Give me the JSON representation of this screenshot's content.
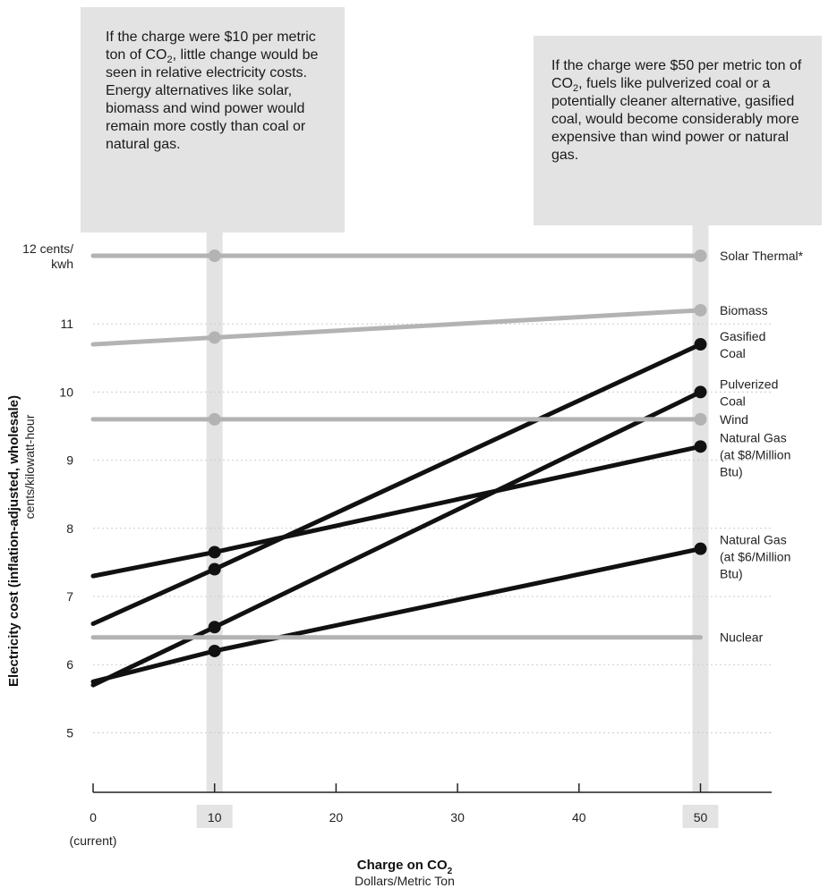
{
  "chart_data": {
    "type": "line",
    "x_ticks": [
      0,
      10,
      20,
      30,
      40,
      50
    ],
    "x_tick_labels": [
      "0",
      "10",
      "20",
      "30",
      "40",
      "50"
    ],
    "x_origin_note": "(current)",
    "highlighted_x": [
      10,
      50
    ],
    "xlim": [
      0,
      55
    ],
    "ylim": [
      4,
      12
    ],
    "y_ticks": [
      5,
      6,
      7,
      8,
      9,
      10,
      11,
      12
    ],
    "y_tick_labels": [
      "5",
      "6",
      "7",
      "8",
      "9",
      "10",
      "11",
      "12 cents/\nkwh"
    ],
    "xlabel": {
      "main": "Charge on CO",
      "sub": "2",
      "unit": "Dollars/Metric Ton"
    },
    "ylabel": {
      "main": "Electricity cost (inflation-adjusted, wholesale)",
      "unit": "cents/kilowatt-hour"
    },
    "grid": "horizontal-dotted",
    "series": [
      {
        "name": "Solar Thermal*",
        "color": "#b3b3b3",
        "x": [
          0,
          10,
          50
        ],
        "y": [
          12.0,
          12.0,
          12.0
        ],
        "markers_at": [
          10,
          50
        ]
      },
      {
        "name": "Biomass",
        "color": "#b3b3b3",
        "x": [
          0,
          10,
          50
        ],
        "y": [
          10.7,
          10.8,
          11.2
        ],
        "markers_at": [
          10,
          50
        ]
      },
      {
        "name": "Gasified\nCoal",
        "color": "#111111",
        "x": [
          0,
          10,
          50
        ],
        "y": [
          6.6,
          7.4,
          10.7
        ],
        "markers_at": [
          10,
          50
        ]
      },
      {
        "name": "Pulverized\nCoal",
        "color": "#111111",
        "x": [
          0,
          10,
          50
        ],
        "y": [
          5.7,
          6.55,
          10.0
        ],
        "markers_at": [
          10,
          50
        ]
      },
      {
        "name": "Wind",
        "color": "#b3b3b3",
        "x": [
          0,
          10,
          50
        ],
        "y": [
          9.6,
          9.6,
          9.6
        ],
        "markers_at": [
          10,
          50
        ]
      },
      {
        "name": "Natural Gas\n(at $8/Million\nBtu)",
        "color": "#111111",
        "x": [
          0,
          10,
          50
        ],
        "y": [
          7.3,
          7.65,
          9.2
        ],
        "markers_at": [
          10,
          50
        ]
      },
      {
        "name": "Natural Gas\n(at $6/Million\nBtu)",
        "color": "#111111",
        "x": [
          0,
          10,
          50
        ],
        "y": [
          5.75,
          6.2,
          7.7
        ],
        "markers_at": [
          10,
          50
        ]
      },
      {
        "name": "Nuclear",
        "color": "#b3b3b3",
        "x": [
          0,
          10,
          50
        ],
        "y": [
          6.4,
          6.4,
          6.4
        ],
        "markers_at": []
      }
    ]
  },
  "annotations": {
    "ten": {
      "pre": "If the charge were $10 per metric ton of CO",
      "sub": "2",
      "post": ", little change would be seen in relative electricity costs. Energy alternatives like solar, biomass and wind power would remain more costly than coal or natural gas."
    },
    "fifty": {
      "pre": "If the charge were $50 per metric ton of CO",
      "sub": "2",
      "post": ", fuels like pulverized coal or a potentially cleaner alternative, gasified coal, would become considerably more expensive than wind power or natural gas."
    }
  },
  "colors": {
    "highlight_band": "#e3e3e3",
    "axis": "#222222",
    "grid": "#cccccc"
  }
}
